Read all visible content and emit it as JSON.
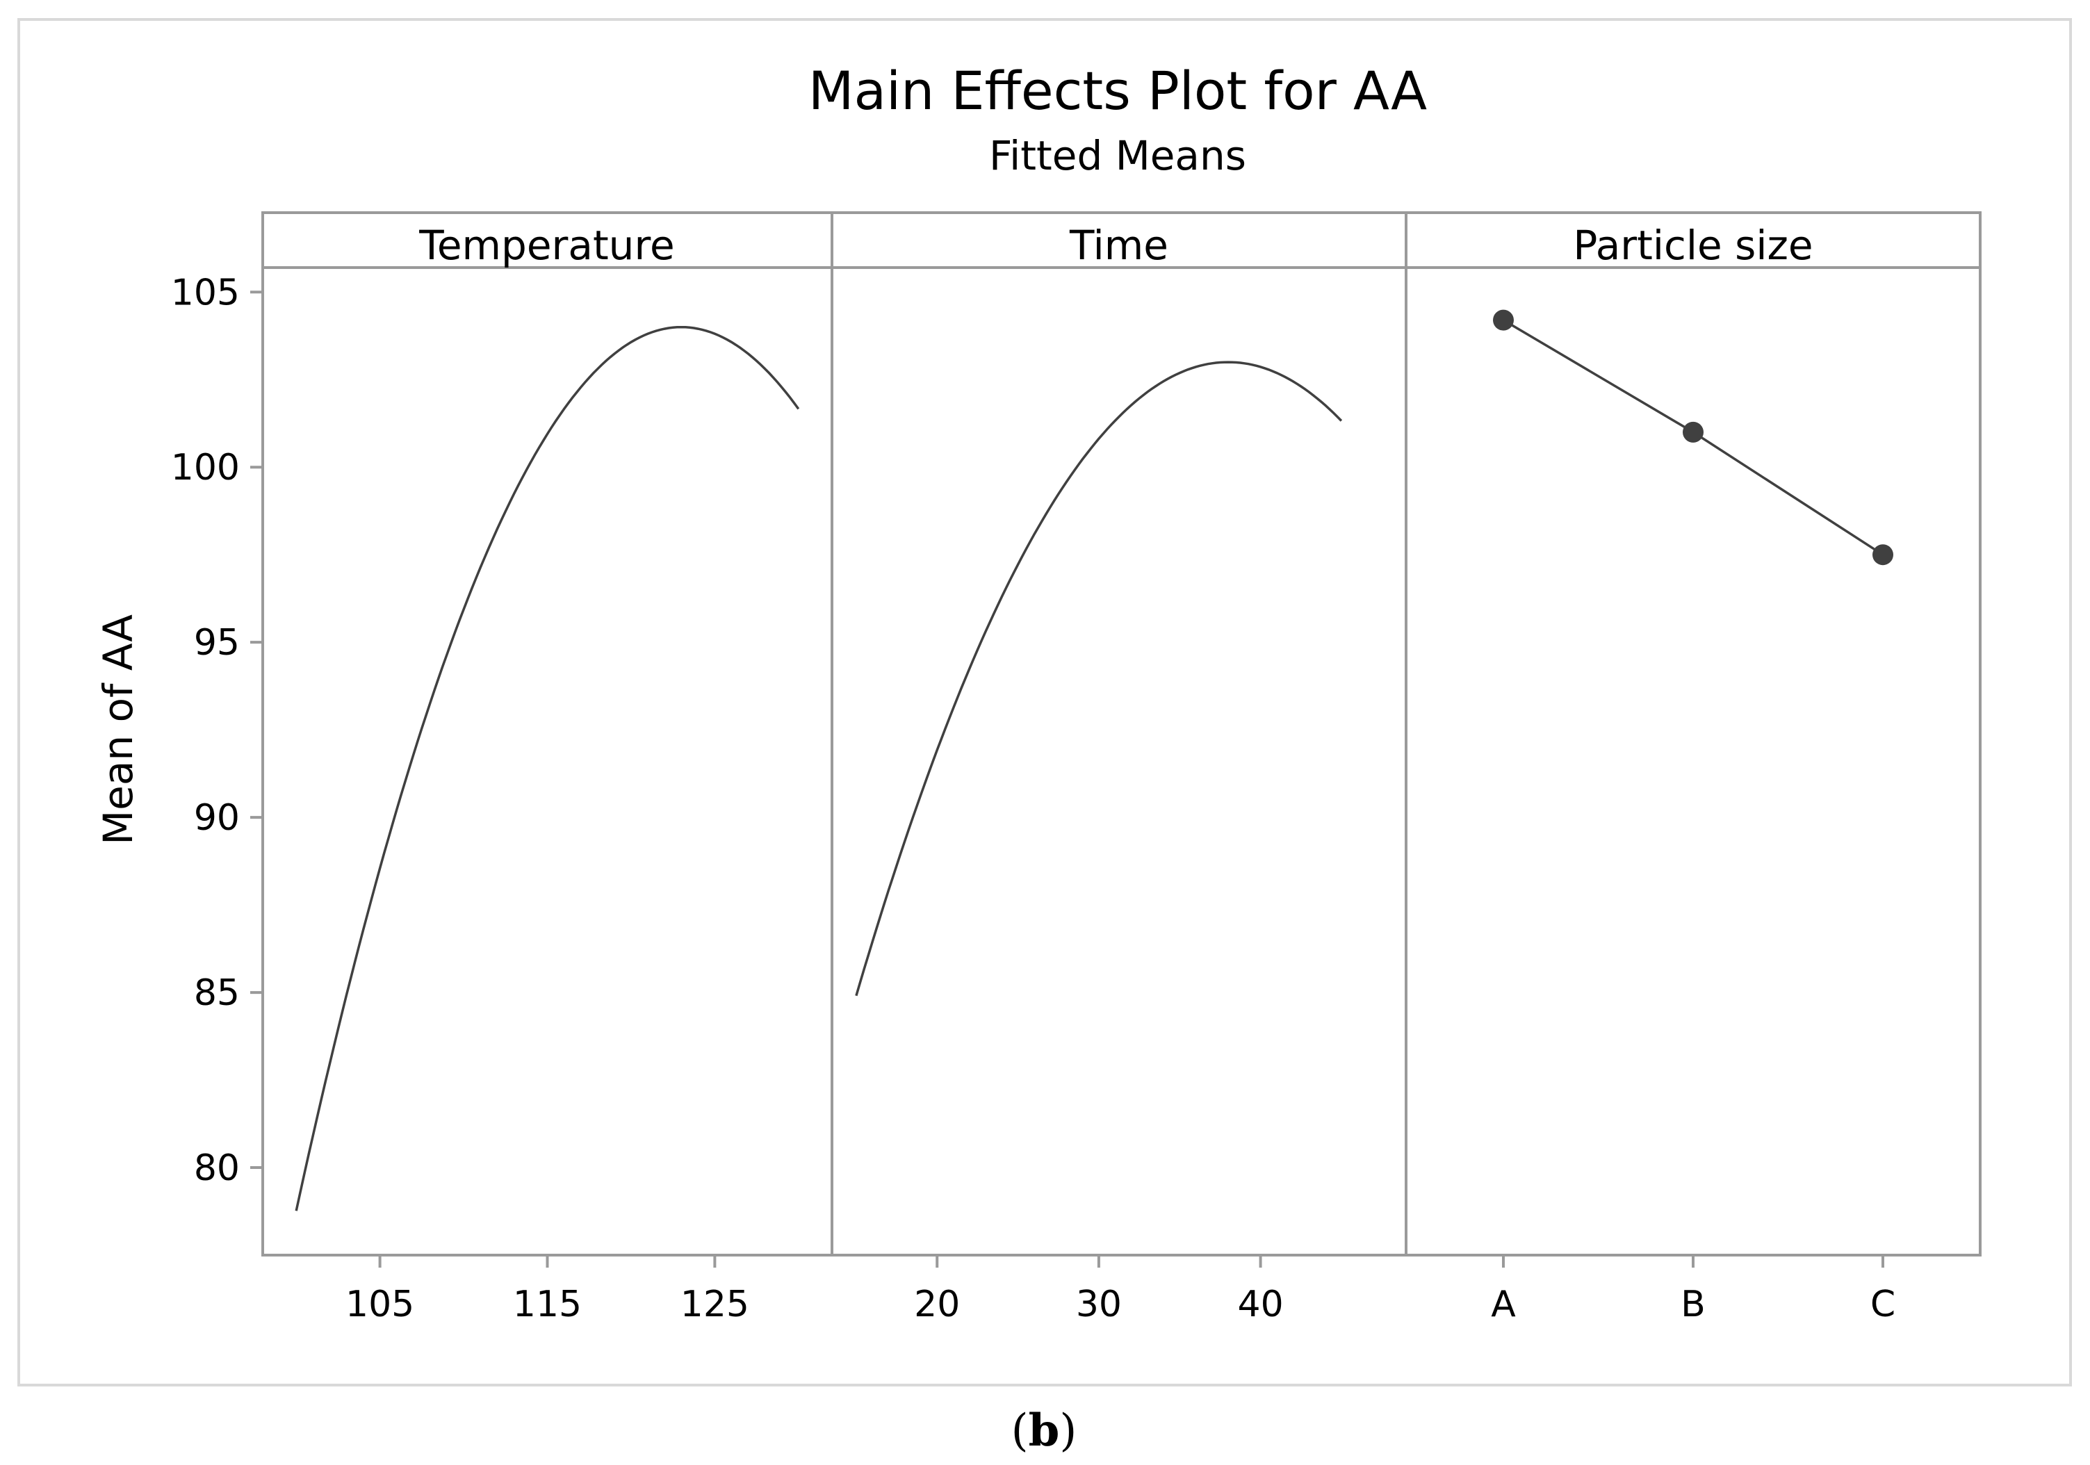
{
  "chart_data": {
    "type": "line",
    "title": "Main Effects Plot for AA",
    "subtitle": "Fitted Means",
    "ylabel": "Mean of AA",
    "ylim": [
      77.5,
      105.7
    ],
    "yticks": [
      80,
      85,
      90,
      95,
      100,
      105
    ],
    "panels": [
      {
        "name": "Temperature",
        "kind": "continuous",
        "xlim": [
          98.0,
          132.0
        ],
        "xticks": [
          105,
          115,
          125
        ],
        "curve": {
          "x_start": 100,
          "x_end": 130,
          "peak_x": 123,
          "peak_y": 104.0,
          "curvature": 0.0477
        }
      },
      {
        "name": "Time",
        "kind": "continuous",
        "xlim": [
          13.5,
          49.0
        ],
        "xticks": [
          20,
          30,
          40
        ],
        "curve": {
          "x_start": 15,
          "x_end": 45,
          "peak_x": 38,
          "peak_y": 103.0,
          "curvature": 0.0342
        }
      },
      {
        "name": "Particle size",
        "kind": "categorical",
        "categories": [
          "A",
          "B",
          "C"
        ],
        "values": [
          104.2,
          101.0,
          97.5
        ]
      }
    ]
  },
  "caption": {
    "open": "(",
    "letter": "b",
    "close": ")"
  }
}
